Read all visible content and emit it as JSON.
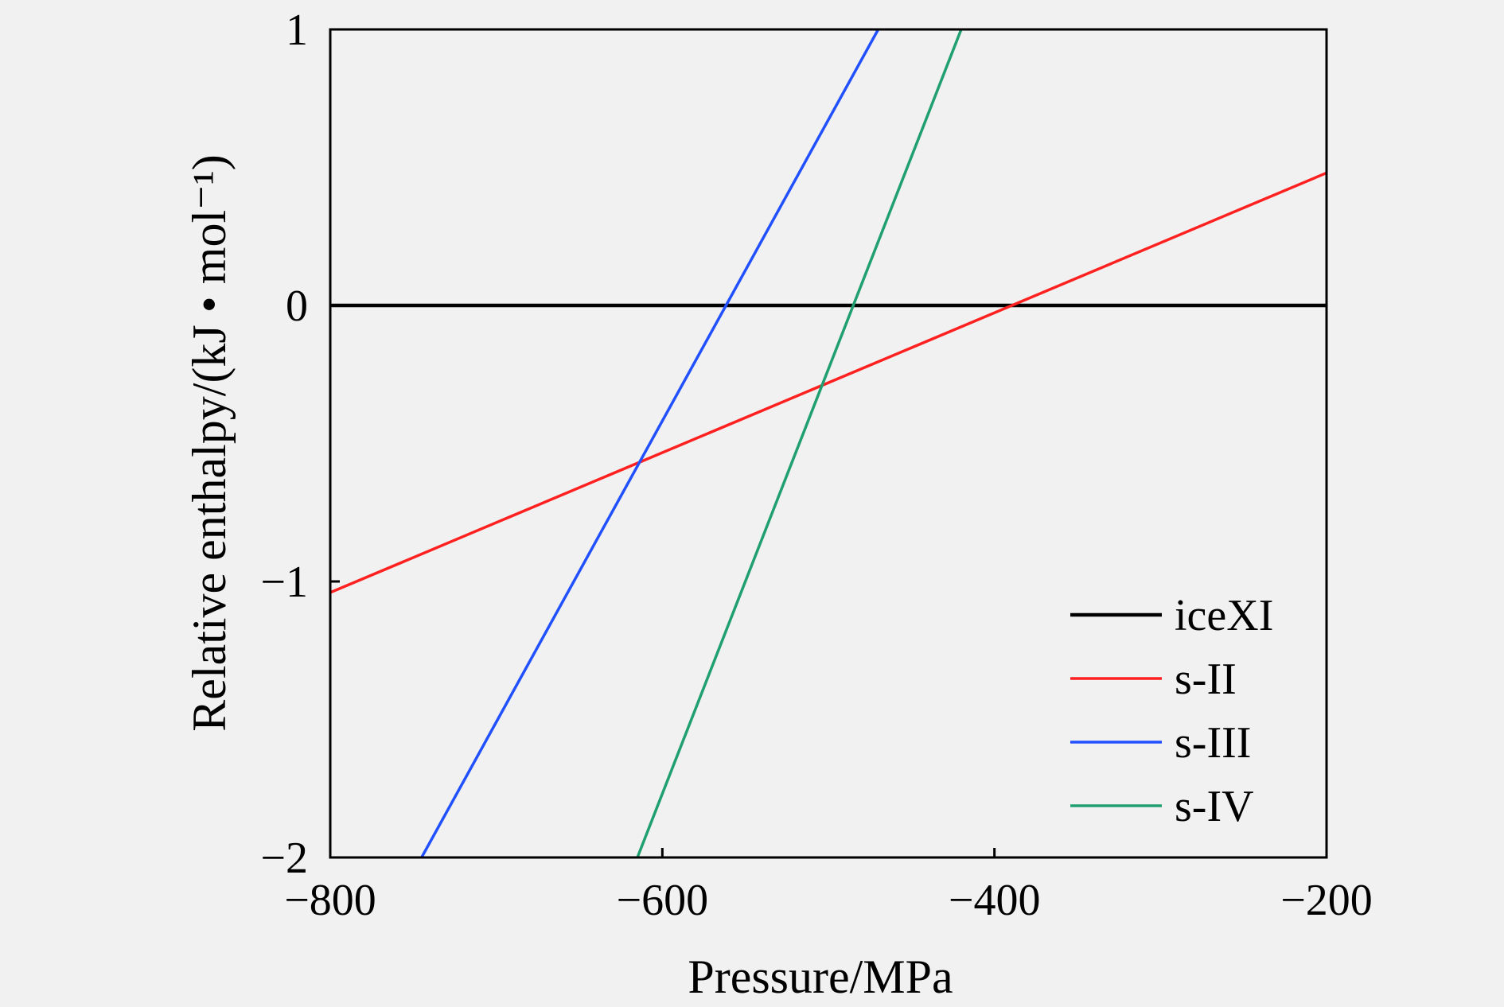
{
  "chart_data": {
    "type": "line",
    "xlabel": "Pressure/MPa",
    "ylabel": "Relative enthalpy/(kJ • mol⁻¹)",
    "xlim": [
      -800,
      -200
    ],
    "ylim": [
      -2,
      1
    ],
    "x_ticks": [
      -800,
      -600,
      -400,
      -200
    ],
    "x_tick_labels": [
      "−800",
      "−600",
      "−400",
      "−200"
    ],
    "y_ticks": [
      -2,
      -1,
      0,
      1
    ],
    "y_tick_labels": [
      "−2",
      "−1",
      "0",
      "1"
    ],
    "grid": false,
    "legend_position": "bottom-right",
    "series": [
      {
        "name": "iceXI",
        "color": "#000000",
        "x": [
          -800,
          -200
        ],
        "y": [
          0,
          0
        ]
      },
      {
        "name": "s-II",
        "color": "#ff2020",
        "x": [
          -800,
          -200
        ],
        "y": [
          -1.04,
          0.48
        ]
      },
      {
        "name": "s-III",
        "color": "#2050ff",
        "x": [
          -745,
          -470
        ],
        "y": [
          -2,
          1
        ]
      },
      {
        "name": "s-IV",
        "color": "#20a070",
        "x": [
          -615,
          -420
        ],
        "y": [
          -2,
          1
        ]
      }
    ]
  }
}
